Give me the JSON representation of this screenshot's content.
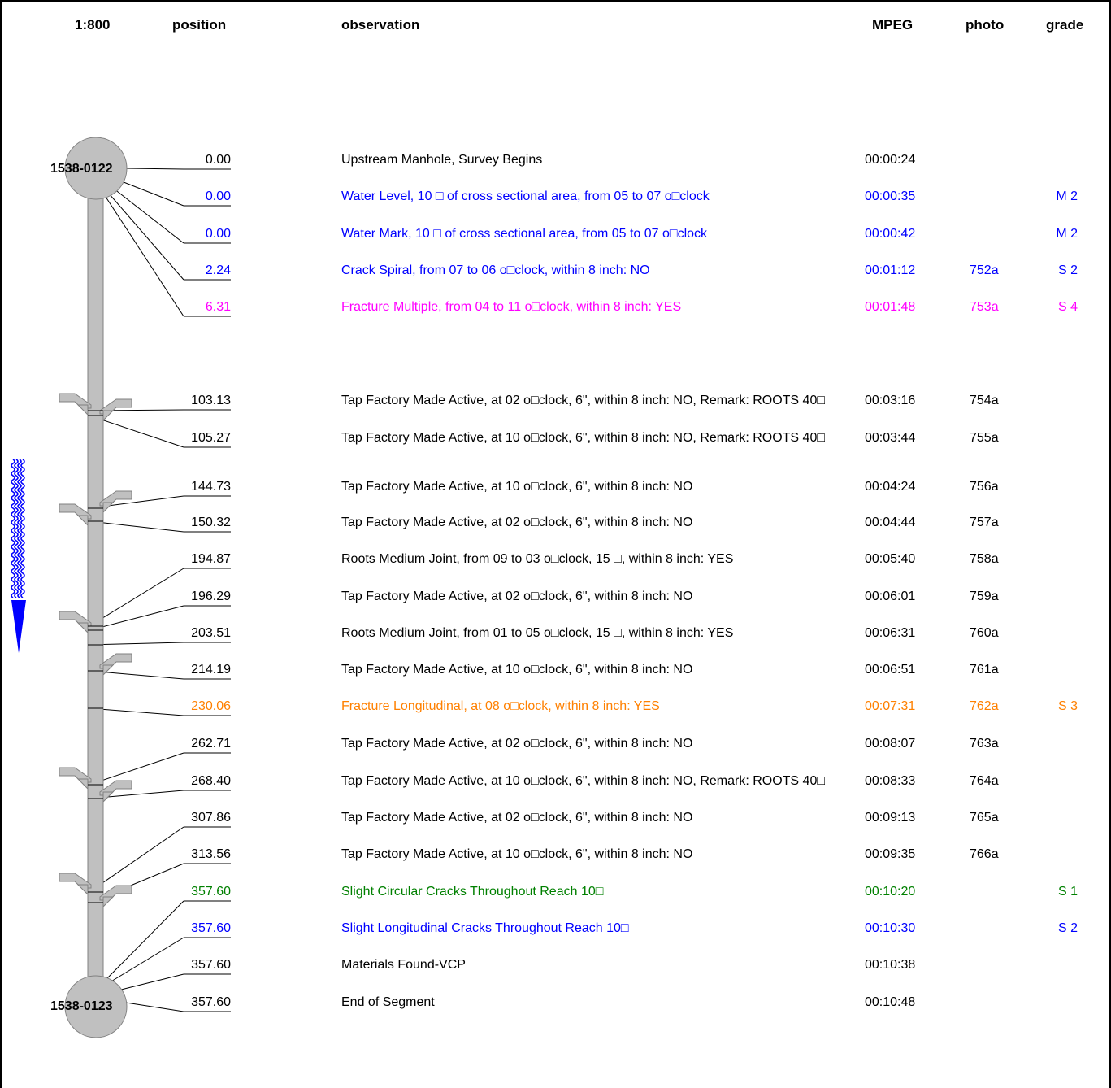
{
  "header": {
    "scale": "1:800",
    "position": "position",
    "observation": "observation",
    "mpeg": "MPEG",
    "photo": "photo",
    "grade": "grade"
  },
  "manholes": {
    "upstream": "1538-0122",
    "downstream": "1538-0123"
  },
  "colors": {
    "black": "#000000",
    "blue": "#0000ff",
    "magenta": "#ff00ff",
    "orange": "#ff8000",
    "green": "#008000",
    "pipe": "#c0c0c0",
    "flow_arrow": "#0000ff"
  },
  "rows": [
    {
      "position": "0.00",
      "observation": "Upstream Manhole, Survey Begins",
      "mpeg": "00:00:24",
      "photo": "",
      "grade": "",
      "color": "#000000"
    },
    {
      "position": "0.00",
      "observation": "Water Level, 10 □ of cross sectional area, from 05 to 07 o□clock",
      "mpeg": "00:00:35",
      "photo": "",
      "grade": "M 2",
      "color": "#0000ff"
    },
    {
      "position": "0.00",
      "observation": "Water Mark, 10 □ of cross sectional area, from 05 to 07 o□clock",
      "mpeg": "00:00:42",
      "photo": "",
      "grade": "M 2",
      "color": "#0000ff"
    },
    {
      "position": "2.24",
      "observation": "Crack Spiral, from 07 to 06 o□clock, within 8 inch: NO",
      "mpeg": "00:01:12",
      "photo": "752a",
      "grade": "S 2",
      "color": "#0000ff"
    },
    {
      "position": "6.31",
      "observation": "Fracture Multiple, from 04 to 11 o□clock, within 8 inch: YES",
      "mpeg": "00:01:48",
      "photo": "753a",
      "grade": "S 4",
      "color": "#ff00ff"
    },
    {
      "position": "103.13",
      "observation": "Tap Factory Made Active, at 02 o□clock, 6\", within 8 inch: NO, Remark: ROOTS 40□",
      "mpeg": "00:03:16",
      "photo": "754a",
      "grade": "",
      "color": "#000000"
    },
    {
      "position": "105.27",
      "observation": "Tap Factory Made Active, at 10 o□clock, 6\", within 8 inch: NO, Remark: ROOTS 40□",
      "mpeg": "00:03:44",
      "photo": "755a",
      "grade": "",
      "color": "#000000"
    },
    {
      "position": "144.73",
      "observation": "Tap Factory Made Active, at 10 o□clock, 6\", within 8 inch: NO",
      "mpeg": "00:04:24",
      "photo": "756a",
      "grade": "",
      "color": "#000000"
    },
    {
      "position": "150.32",
      "observation": "Tap Factory Made Active, at 02 o□clock, 6\", within 8 inch: NO",
      "mpeg": "00:04:44",
      "photo": "757a",
      "grade": "",
      "color": "#000000"
    },
    {
      "position": "194.87",
      "observation": "Roots Medium Joint, from 09 to 03 o□clock, 15 □, within 8 inch: YES",
      "mpeg": "00:05:40",
      "photo": "758a",
      "grade": "",
      "color": "#000000"
    },
    {
      "position": "196.29",
      "observation": "Tap Factory Made Active, at 02 o□clock, 6\", within 8 inch: NO",
      "mpeg": "00:06:01",
      "photo": "759a",
      "grade": "",
      "color": "#000000"
    },
    {
      "position": "203.51",
      "observation": "Roots Medium Joint, from 01 to 05 o□clock, 15 □, within 8 inch: YES",
      "mpeg": "00:06:31",
      "photo": "760a",
      "grade": "",
      "color": "#000000"
    },
    {
      "position": "214.19",
      "observation": "Tap Factory Made Active, at 10 o□clock, 6\", within 8 inch: NO",
      "mpeg": "00:06:51",
      "photo": "761a",
      "grade": "",
      "color": "#000000"
    },
    {
      "position": "230.06",
      "observation": "Fracture Longitudinal, at 08 o□clock, within 8 inch: YES",
      "mpeg": "00:07:31",
      "photo": "762a",
      "grade": "S 3",
      "color": "#ff8000"
    },
    {
      "position": "262.71",
      "observation": "Tap Factory Made Active, at 02 o□clock, 6\", within 8 inch: NO",
      "mpeg": "00:08:07",
      "photo": "763a",
      "grade": "",
      "color": "#000000"
    },
    {
      "position": "268.40",
      "observation": "Tap Factory Made Active, at 10 o□clock, 6\", within 8 inch: NO, Remark: ROOTS 40□",
      "mpeg": "00:08:33",
      "photo": "764a",
      "grade": "",
      "color": "#000000"
    },
    {
      "position": "307.86",
      "observation": "Tap Factory Made Active, at 02 o□clock, 6\", within 8 inch: NO",
      "mpeg": "00:09:13",
      "photo": "765a",
      "grade": "",
      "color": "#000000"
    },
    {
      "position": "313.56",
      "observation": "Tap Factory Made Active, at 10 o□clock, 6\", within 8 inch: NO",
      "mpeg": "00:09:35",
      "photo": "766a",
      "grade": "",
      "color": "#000000"
    },
    {
      "position": "357.60",
      "observation": "Slight Circular Cracks Throughout Reach  10□",
      "mpeg": "00:10:20",
      "photo": "",
      "grade": "S 1",
      "color": "#008000"
    },
    {
      "position": "357.60",
      "observation": "Slight Longitudinal Cracks Throughout Reach  10□",
      "mpeg": "00:10:30",
      "photo": "",
      "grade": "S 2",
      "color": "#0000ff"
    },
    {
      "position": "357.60",
      "observation": "Materials Found-VCP",
      "mpeg": "00:10:38",
      "photo": "",
      "grade": "",
      "color": "#000000"
    },
    {
      "position": "357.60",
      "observation": "End of Segment",
      "mpeg": "00:10:48",
      "photo": "",
      "grade": "",
      "color": "#000000"
    }
  ]
}
